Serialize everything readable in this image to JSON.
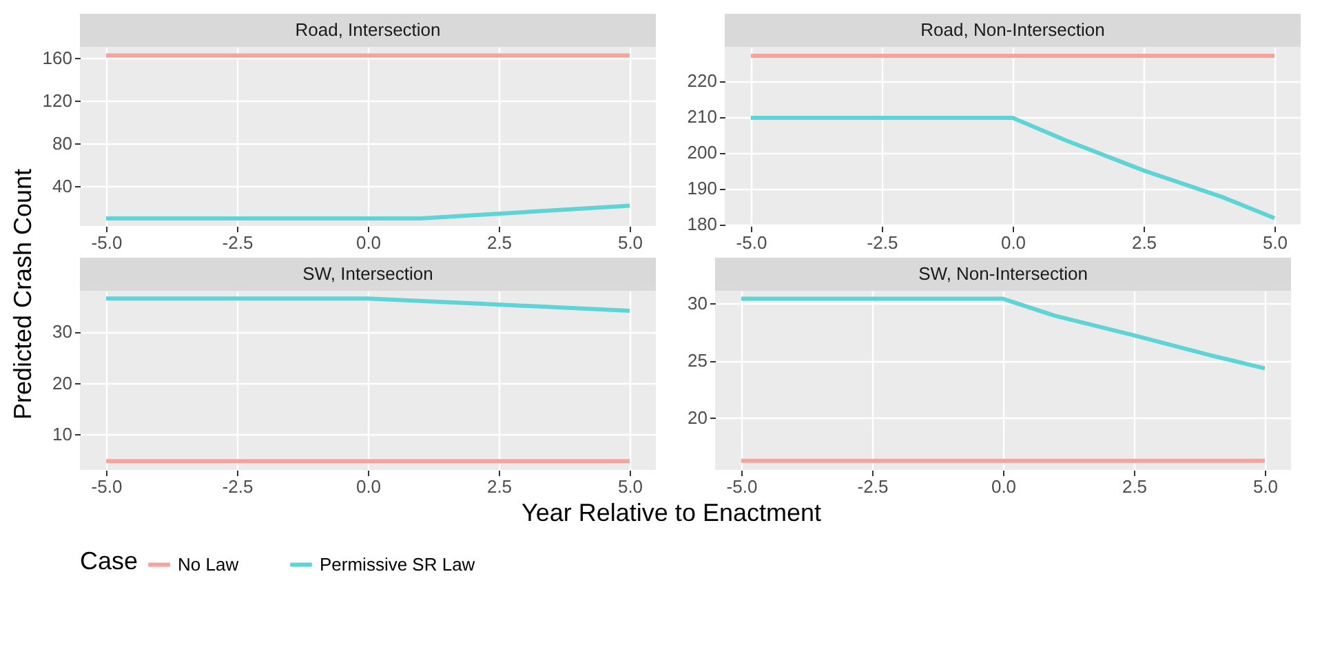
{
  "chart_data": [
    {
      "type": "line",
      "title": "Road, Intersection",
      "xlabel": "Year Relative to Enactment",
      "ylabel": "Predicted Crash Count",
      "legend_title": "Case",
      "legend": "bottom",
      "grid": true,
      "xlim": [
        -5.5,
        5.5
      ],
      "xticks": [
        {
          "value": -5,
          "label": "-5.0"
        },
        {
          "value": -2.5,
          "label": "-2.5"
        },
        {
          "value": 0,
          "label": "0.0"
        },
        {
          "value": 2.5,
          "label": "2.5"
        },
        {
          "value": 5,
          "label": "5.0"
        }
      ],
      "ylim": [
        3,
        170
      ],
      "yticks": [
        40,
        80,
        120,
        160
      ],
      "series": [
        {
          "name": "No Law",
          "color": "#f5a39d",
          "x": [
            -5,
            5
          ],
          "values": [
            162,
            162
          ]
        },
        {
          "name": "Permissive SR Law",
          "color": "#5fd4d6",
          "x": [
            -5,
            1,
            5
          ],
          "values": [
            10,
            10,
            22
          ]
        }
      ]
    },
    {
      "type": "line",
      "title": "Road, Non-Intersection",
      "grid": true,
      "xlim": [
        -5.5,
        5.5
      ],
      "xticks": [
        {
          "value": -5,
          "label": "-5.0"
        },
        {
          "value": -2.5,
          "label": "-2.5"
        },
        {
          "value": 0,
          "label": "0.0"
        },
        {
          "value": 2.5,
          "label": "2.5"
        },
        {
          "value": 5,
          "label": "5.0"
        }
      ],
      "ylim": [
        179.5,
        229.5
      ],
      "yticks": [
        180,
        190,
        200,
        210,
        220
      ],
      "series": [
        {
          "name": "No Law",
          "color": "#f5a39d",
          "x": [
            -5,
            5
          ],
          "values": [
            227,
            227
          ]
        },
        {
          "name": "Permissive SR Law",
          "color": "#5fd4d6",
          "x": [
            -5,
            0,
            1,
            2.5,
            4,
            5
          ],
          "values": [
            209.7,
            209.7,
            203.5,
            195,
            187.6,
            181.7
          ]
        }
      ]
    },
    {
      "type": "line",
      "title": "SW, Intersection",
      "grid": true,
      "xlim": [
        -5.5,
        5.5
      ],
      "xticks": [
        {
          "value": -5,
          "label": "-5.0"
        },
        {
          "value": -2.5,
          "label": "-2.5"
        },
        {
          "value": 0,
          "label": "0.0"
        },
        {
          "value": 2.5,
          "label": "2.5"
        },
        {
          "value": 5,
          "label": "5.0"
        }
      ],
      "ylim": [
        3,
        38
      ],
      "yticks": [
        10,
        20,
        30
      ],
      "series": [
        {
          "name": "No Law",
          "color": "#f5a39d",
          "x": [
            -5,
            5
          ],
          "values": [
            4.7,
            4.7
          ]
        },
        {
          "name": "Permissive SR Law",
          "color": "#5fd4d6",
          "x": [
            -5,
            0,
            2.5,
            5
          ],
          "values": [
            36.5,
            36.5,
            35.3,
            34.1
          ]
        }
      ]
    },
    {
      "type": "line",
      "title": "SW, Non-Intersection",
      "grid": true,
      "xlim": [
        -5.5,
        5.5
      ],
      "xticks": [
        {
          "value": -5,
          "label": "-5.0"
        },
        {
          "value": -2.5,
          "label": "-2.5"
        },
        {
          "value": 0,
          "label": "0.0"
        },
        {
          "value": 2.5,
          "label": "2.5"
        },
        {
          "value": 5,
          "label": "5.0"
        }
      ],
      "ylim": [
        15.4,
        31.1
      ],
      "yticks": [
        20,
        25,
        30
      ],
      "series": [
        {
          "name": "No Law",
          "color": "#f5a39d",
          "x": [
            -5,
            5
          ],
          "values": [
            16.2,
            16.2
          ]
        },
        {
          "name": "Permissive SR Law",
          "color": "#5fd4d6",
          "x": [
            -5,
            0,
            1,
            2.5,
            4,
            5
          ],
          "values": [
            30.4,
            30.4,
            28.9,
            27.2,
            25.4,
            24.3
          ]
        }
      ]
    }
  ]
}
